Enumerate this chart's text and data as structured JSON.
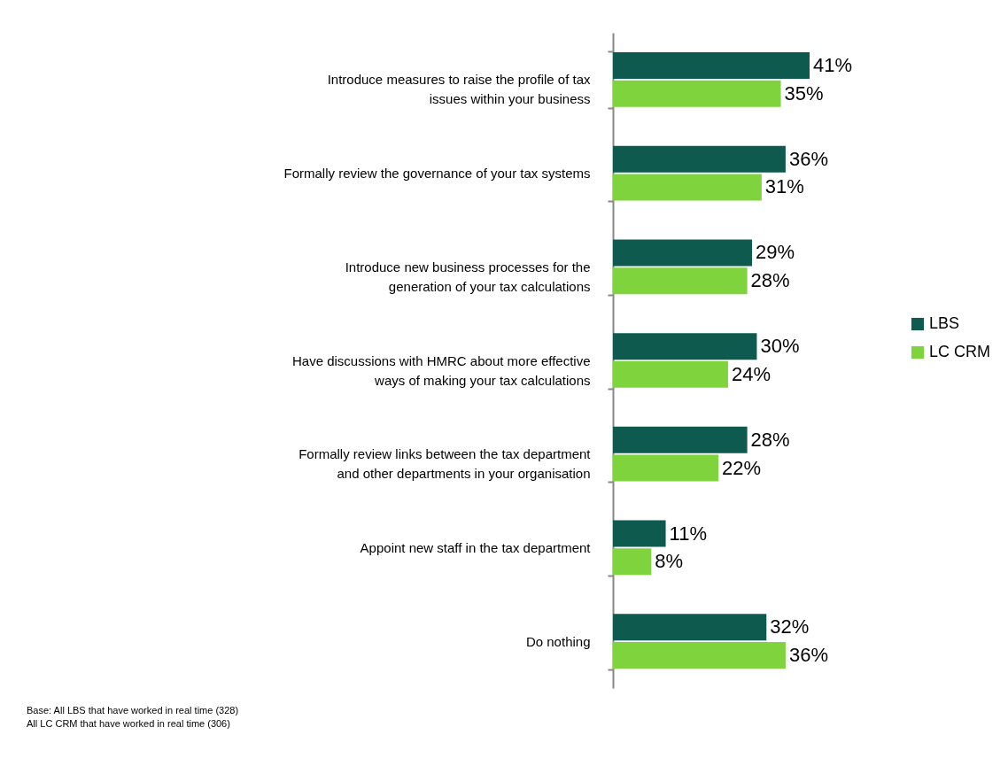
{
  "chart_data": {
    "type": "bar",
    "orientation": "horizontal",
    "categories": [
      "Introduce measures to raise the profile of tax issues within your business",
      "Formally review the governance of your tax systems",
      "Introduce new business processes for the generation of your tax calculations",
      "Have discussions with HMRC about more effective ways of making your tax calculations",
      "Formally review links between the tax department and other departments in your organisation",
      "Appoint new staff in the tax department",
      "Do nothing"
    ],
    "series": [
      {
        "name": "LBS",
        "color": "#0e5a4e",
        "values": [
          41,
          36,
          29,
          30,
          28,
          11,
          32
        ],
        "value_labels": [
          "41%",
          "36%",
          "29%",
          "30%",
          "28%",
          "11%",
          "32%"
        ]
      },
      {
        "name": "LC CRM",
        "color": "#7fd33c",
        "values": [
          35,
          31,
          28,
          24,
          22,
          8,
          36
        ],
        "value_labels": [
          "35%",
          "31%",
          "28%",
          "24%",
          "22%",
          "8%",
          "36%"
        ]
      }
    ],
    "tick_labels": "y",
    "grid": false,
    "legend": "right",
    "annotations": [
      "Base:    All LBS that have worked in real time (328)",
      "            All LC CRM that have worked in real time (306)"
    ]
  }
}
